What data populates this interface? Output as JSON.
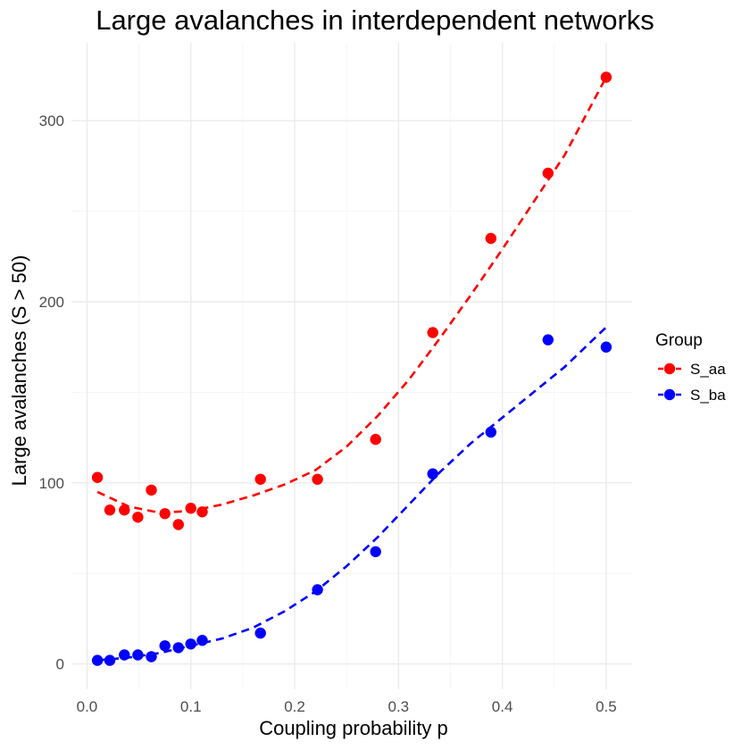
{
  "chart_data": {
    "type": "scatter",
    "title": "Large avalanches in interdependent networks",
    "xlabel": "Coupling probability p",
    "ylabel": "Large avalanches (S > 50)",
    "xlim": [
      -0.015,
      0.525
    ],
    "ylim": [
      -14,
      343
    ],
    "x_ticks": [
      0.0,
      0.1,
      0.2,
      0.3,
      0.4,
      0.5
    ],
    "x_tick_labels": [
      "0.0",
      "0.1",
      "0.2",
      "0.3",
      "0.4",
      "0.5"
    ],
    "y_ticks": [
      0,
      100,
      200,
      300
    ],
    "y_tick_labels": [
      "0",
      "100",
      "200",
      "300"
    ],
    "grid": true,
    "legend": {
      "title": "Group",
      "position": "right"
    },
    "series": [
      {
        "name": "S_aa",
        "color": "#ff0000",
        "points": [
          [
            0.01,
            103
          ],
          [
            0.022,
            85
          ],
          [
            0.036,
            85
          ],
          [
            0.049,
            81
          ],
          [
            0.062,
            96
          ],
          [
            0.075,
            83
          ],
          [
            0.088,
            77
          ],
          [
            0.1,
            86
          ],
          [
            0.111,
            84
          ],
          [
            0.167,
            102
          ],
          [
            0.222,
            102
          ],
          [
            0.278,
            124
          ],
          [
            0.333,
            183
          ],
          [
            0.389,
            235
          ],
          [
            0.444,
            271
          ],
          [
            0.5,
            324
          ]
        ],
        "fit": [
          [
            0.01,
            95
          ],
          [
            0.04,
            87
          ],
          [
            0.07,
            83.5
          ],
          [
            0.1,
            84.5
          ],
          [
            0.13,
            88
          ],
          [
            0.16,
            93
          ],
          [
            0.19,
            99
          ],
          [
            0.22,
            107
          ],
          [
            0.25,
            120
          ],
          [
            0.28,
            137
          ],
          [
            0.31,
            157
          ],
          [
            0.34,
            180
          ],
          [
            0.37,
            204
          ],
          [
            0.4,
            229
          ],
          [
            0.43,
            255
          ],
          [
            0.46,
            281
          ],
          [
            0.5,
            324
          ]
        ]
      },
      {
        "name": "S_ba",
        "color": "#0000ff",
        "points": [
          [
            0.01,
            2
          ],
          [
            0.022,
            2
          ],
          [
            0.036,
            5
          ],
          [
            0.049,
            5
          ],
          [
            0.062,
            4
          ],
          [
            0.075,
            10
          ],
          [
            0.088,
            9
          ],
          [
            0.1,
            11
          ],
          [
            0.111,
            13
          ],
          [
            0.167,
            17
          ],
          [
            0.222,
            41
          ],
          [
            0.278,
            62
          ],
          [
            0.333,
            105
          ],
          [
            0.389,
            128
          ],
          [
            0.444,
            179
          ],
          [
            0.5,
            175
          ]
        ],
        "fit": [
          [
            0.01,
            2
          ],
          [
            0.04,
            3.5
          ],
          [
            0.07,
            6
          ],
          [
            0.1,
            10
          ],
          [
            0.13,
            14
          ],
          [
            0.16,
            20
          ],
          [
            0.19,
            29
          ],
          [
            0.22,
            40
          ],
          [
            0.25,
            54
          ],
          [
            0.28,
            70
          ],
          [
            0.31,
            88
          ],
          [
            0.34,
            106
          ],
          [
            0.37,
            122
          ],
          [
            0.4,
            136
          ],
          [
            0.43,
            150
          ],
          [
            0.46,
            164
          ],
          [
            0.5,
            186
          ]
        ]
      }
    ]
  }
}
